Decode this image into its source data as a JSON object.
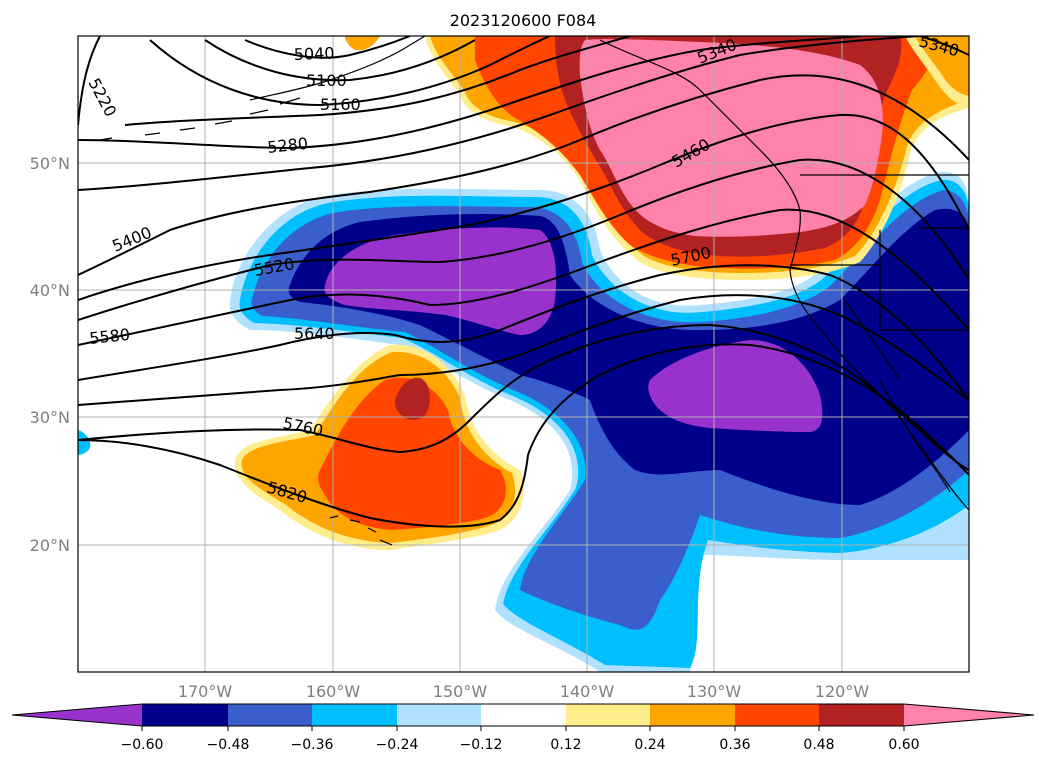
{
  "title": "2023120600 F084",
  "map": {
    "lat_ticks": [
      {
        "value": "50°N"
      },
      {
        "value": "40°N"
      },
      {
        "value": "30°N"
      },
      {
        "value": "20°N"
      }
    ],
    "lon_ticks": [
      {
        "value": "170°W"
      },
      {
        "value": "160°W"
      },
      {
        "value": "150°W"
      },
      {
        "value": "140°W"
      },
      {
        "value": "130°W"
      },
      {
        "value": "120°W"
      }
    ],
    "contour_labels": [
      "5040",
      "5100",
      "5160",
      "5220",
      "5280",
      "5340",
      "5340",
      "5400",
      "5460",
      "5520",
      "5580",
      "5640",
      "5700",
      "5760",
      "5820"
    ],
    "colors": {
      "c1": "#9932cc",
      "c2": "#00008b",
      "c3": "#3a5fcd",
      "c4": "#00bfff",
      "c5": "#b0e2ff",
      "c6": "#ffffff",
      "c7": "#ffec8b",
      "c8": "#ffa500",
      "c9": "#ff4500",
      "c10": "#b22222",
      "c11": "#ff82ab"
    }
  },
  "colorbar": {
    "ticks": [
      "−0.60",
      "−0.48",
      "−0.36",
      "−0.24",
      "−0.12",
      "0.12",
      "0.24",
      "0.36",
      "0.48",
      "0.60"
    ],
    "colors": [
      "#9932cc",
      "#00008b",
      "#3a5fcd",
      "#00bfff",
      "#b0e2ff",
      "#ffffff",
      "#ffec8b",
      "#ffa500",
      "#ff4500",
      "#b22222",
      "#ff82ab"
    ]
  }
}
